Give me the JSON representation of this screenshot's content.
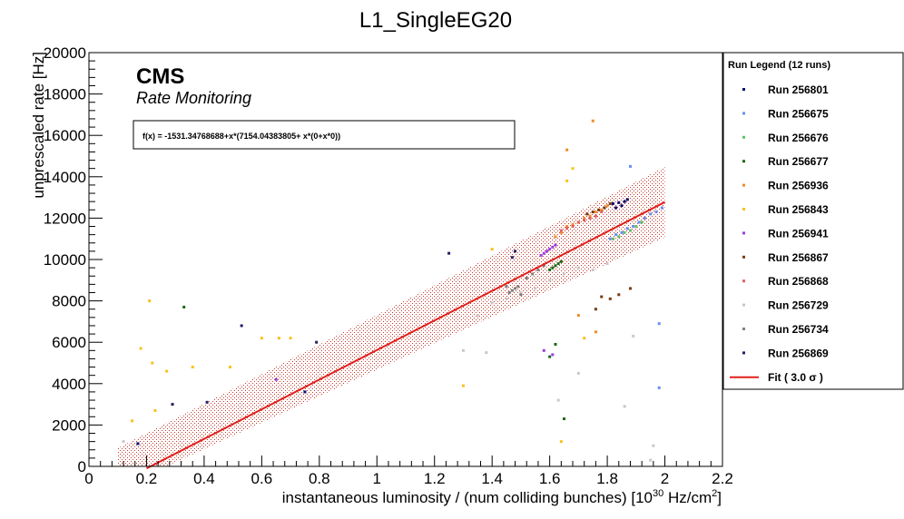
{
  "chart_data": {
    "type": "scatter",
    "title": "L1_SingleEG20",
    "xlabel": "instantaneous luminosity / (num colliding bunches) [10",
    "xlabel_exp": "30",
    "xlabel_unit": " Hz/cm",
    "xlabel_unit_exp": "2",
    "xlabel_end": "]",
    "ylabel": "unprescaled rate [Hz]",
    "xlim": [
      0,
      2.2
    ],
    "ylim": [
      0,
      20000
    ],
    "x_ticks": [
      "0",
      "0.2",
      "0.4",
      "0.6",
      "0.8",
      "1",
      "1.2",
      "1.4",
      "1.6",
      "1.8",
      "2",
      "2.2"
    ],
    "y_ticks": [
      "0",
      "2000",
      "4000",
      "6000",
      "8000",
      "10000",
      "12000",
      "14000",
      "16000",
      "18000",
      "20000"
    ],
    "experiment_label": "CMS",
    "subtitle": "Rate Monitoring",
    "fit_formula": "f(x) = -1531.34768688+x*(7154.04383805+ x*(0+x*0))",
    "fit": {
      "intercept": -1531.34768688,
      "slope": 7154.04383805,
      "x_range": [
        0.2,
        2.0
      ],
      "band_halfwidth": 1700,
      "color": "#e0201c"
    },
    "legend_title": "Run Legend (12 runs)",
    "legend_fit_label": "Fit ( 3.0  σ )",
    "series": [
      {
        "name": "Run 256801",
        "color": "#0b0b6e",
        "points": [
          [
            0.17,
            1100
          ],
          [
            1.86,
            12800
          ],
          [
            1.84,
            12750
          ],
          [
            1.82,
            12700
          ],
          [
            1.87,
            12900
          ],
          [
            1.85,
            12600
          ],
          [
            1.83,
            12500
          ],
          [
            0.75,
            3600
          ]
        ]
      },
      {
        "name": "Run 256675",
        "color": "#6a8ef0",
        "points": [
          [
            1.99,
            12500
          ],
          [
            1.97,
            12300
          ],
          [
            1.95,
            12200
          ],
          [
            1.93,
            12000
          ],
          [
            1.91,
            11800
          ],
          [
            1.89,
            11600
          ],
          [
            1.87,
            11500
          ],
          [
            1.85,
            11300
          ],
          [
            1.83,
            11200
          ],
          [
            1.81,
            11000
          ],
          [
            1.88,
            14500
          ],
          [
            1.98,
            6900
          ],
          [
            1.98,
            3800
          ]
        ]
      },
      {
        "name": "Run 256676",
        "color": "#5fc06a",
        "points": [
          [
            1.92,
            11800
          ],
          [
            1.9,
            11600
          ],
          [
            1.88,
            11400
          ],
          [
            1.86,
            11300
          ],
          [
            1.84,
            11100
          ],
          [
            1.82,
            11000
          ]
        ]
      },
      {
        "name": "Run 256677",
        "color": "#1a6a1a",
        "points": [
          [
            0.33,
            7700
          ],
          [
            1.64,
            9900
          ],
          [
            1.63,
            9800
          ],
          [
            1.62,
            9700
          ],
          [
            1.61,
            9600
          ],
          [
            1.6,
            9500
          ],
          [
            1.62,
            5900
          ],
          [
            1.6,
            5300
          ],
          [
            1.65,
            2300
          ]
        ]
      },
      {
        "name": "Run 256936",
        "color": "#f08a2a",
        "points": [
          [
            1.75,
            16700
          ],
          [
            1.66,
            15300
          ],
          [
            1.8,
            12600
          ],
          [
            1.78,
            12400
          ],
          [
            1.76,
            12300
          ],
          [
            1.74,
            12100
          ],
          [
            1.72,
            12000
          ],
          [
            1.7,
            11800
          ],
          [
            1.68,
            11700
          ],
          [
            1.66,
            11600
          ],
          [
            1.64,
            11300
          ],
          [
            1.62,
            11100
          ],
          [
            1.7,
            7300
          ],
          [
            1.76,
            6500
          ]
        ]
      },
      {
        "name": "Run 256843",
        "color": "#f8c21c",
        "points": [
          [
            0.21,
            8000
          ],
          [
            0.18,
            5700
          ],
          [
            0.22,
            5000
          ],
          [
            0.27,
            4600
          ],
          [
            0.23,
            2700
          ],
          [
            0.15,
            2200
          ],
          [
            0.36,
            4800
          ],
          [
            0.6,
            6200
          ],
          [
            0.66,
            6200
          ],
          [
            0.7,
            6200
          ],
          [
            0.49,
            4800
          ],
          [
            1.3,
            3900
          ],
          [
            1.4,
            10500
          ],
          [
            1.68,
            14400
          ],
          [
            1.66,
            13800
          ],
          [
            1.72,
            6200
          ],
          [
            1.64,
            1200
          ]
        ]
      },
      {
        "name": "Run 256941",
        "color": "#9a3ee0",
        "points": [
          [
            1.62,
            10700
          ],
          [
            1.61,
            10600
          ],
          [
            1.6,
            10500
          ],
          [
            1.59,
            10400
          ],
          [
            1.58,
            10300
          ],
          [
            1.57,
            10200
          ],
          [
            1.61,
            5400
          ],
          [
            1.58,
            5600
          ],
          [
            0.65,
            4200
          ]
        ]
      },
      {
        "name": "Run 256867",
        "color": "#7a3a10",
        "points": [
          [
            1.81,
            12700
          ],
          [
            1.79,
            12500
          ],
          [
            1.77,
            12400
          ],
          [
            1.75,
            12300
          ],
          [
            1.73,
            12200
          ],
          [
            1.81,
            8100
          ],
          [
            1.84,
            8300
          ],
          [
            1.78,
            8200
          ],
          [
            1.76,
            7600
          ],
          [
            1.88,
            8600
          ]
        ]
      },
      {
        "name": "Run 256868",
        "color": "#e06060",
        "points": [
          [
            1.78,
            12300
          ],
          [
            1.76,
            12100
          ],
          [
            1.74,
            12000
          ],
          [
            1.72,
            11900
          ],
          [
            1.7,
            11800
          ],
          [
            1.68,
            11600
          ],
          [
            1.66,
            11500
          ],
          [
            1.64,
            11400
          ]
        ]
      },
      {
        "name": "Run 256729",
        "color": "#c8c8c8",
        "points": [
          [
            1.89,
            6300
          ],
          [
            0.12,
            1200
          ],
          [
            1.8,
            9800
          ],
          [
            1.75,
            9500
          ],
          [
            1.7,
            9600
          ],
          [
            1.65,
            9300
          ],
          [
            1.6,
            9000
          ],
          [
            1.55,
            8600
          ],
          [
            1.5,
            8400
          ],
          [
            1.45,
            8100
          ],
          [
            1.4,
            7900
          ],
          [
            1.35,
            7300
          ],
          [
            1.3,
            5600
          ],
          [
            1.38,
            5500
          ],
          [
            1.7,
            4500
          ],
          [
            1.63,
            3200
          ],
          [
            1.86,
            2900
          ],
          [
            1.96,
            1000
          ],
          [
            1.95,
            300
          ]
        ]
      },
      {
        "name": "Run 256734",
        "color": "#808080",
        "points": [
          [
            1.49,
            8700
          ],
          [
            1.48,
            8600
          ],
          [
            1.47,
            8500
          ],
          [
            1.46,
            8400
          ],
          [
            1.5,
            8300
          ],
          [
            1.45,
            8700
          ],
          [
            1.58,
            9700
          ],
          [
            1.56,
            9500
          ],
          [
            1.54,
            9300
          ],
          [
            1.52,
            9100
          ]
        ]
      },
      {
        "name": "Run 256869",
        "color": "#202060",
        "points": [
          [
            0.53,
            6800
          ],
          [
            0.79,
            6000
          ],
          [
            0.41,
            3100
          ],
          [
            0.29,
            3000
          ],
          [
            1.25,
            10300
          ],
          [
            1.48,
            10400
          ],
          [
            1.47,
            10100
          ]
        ]
      }
    ]
  }
}
